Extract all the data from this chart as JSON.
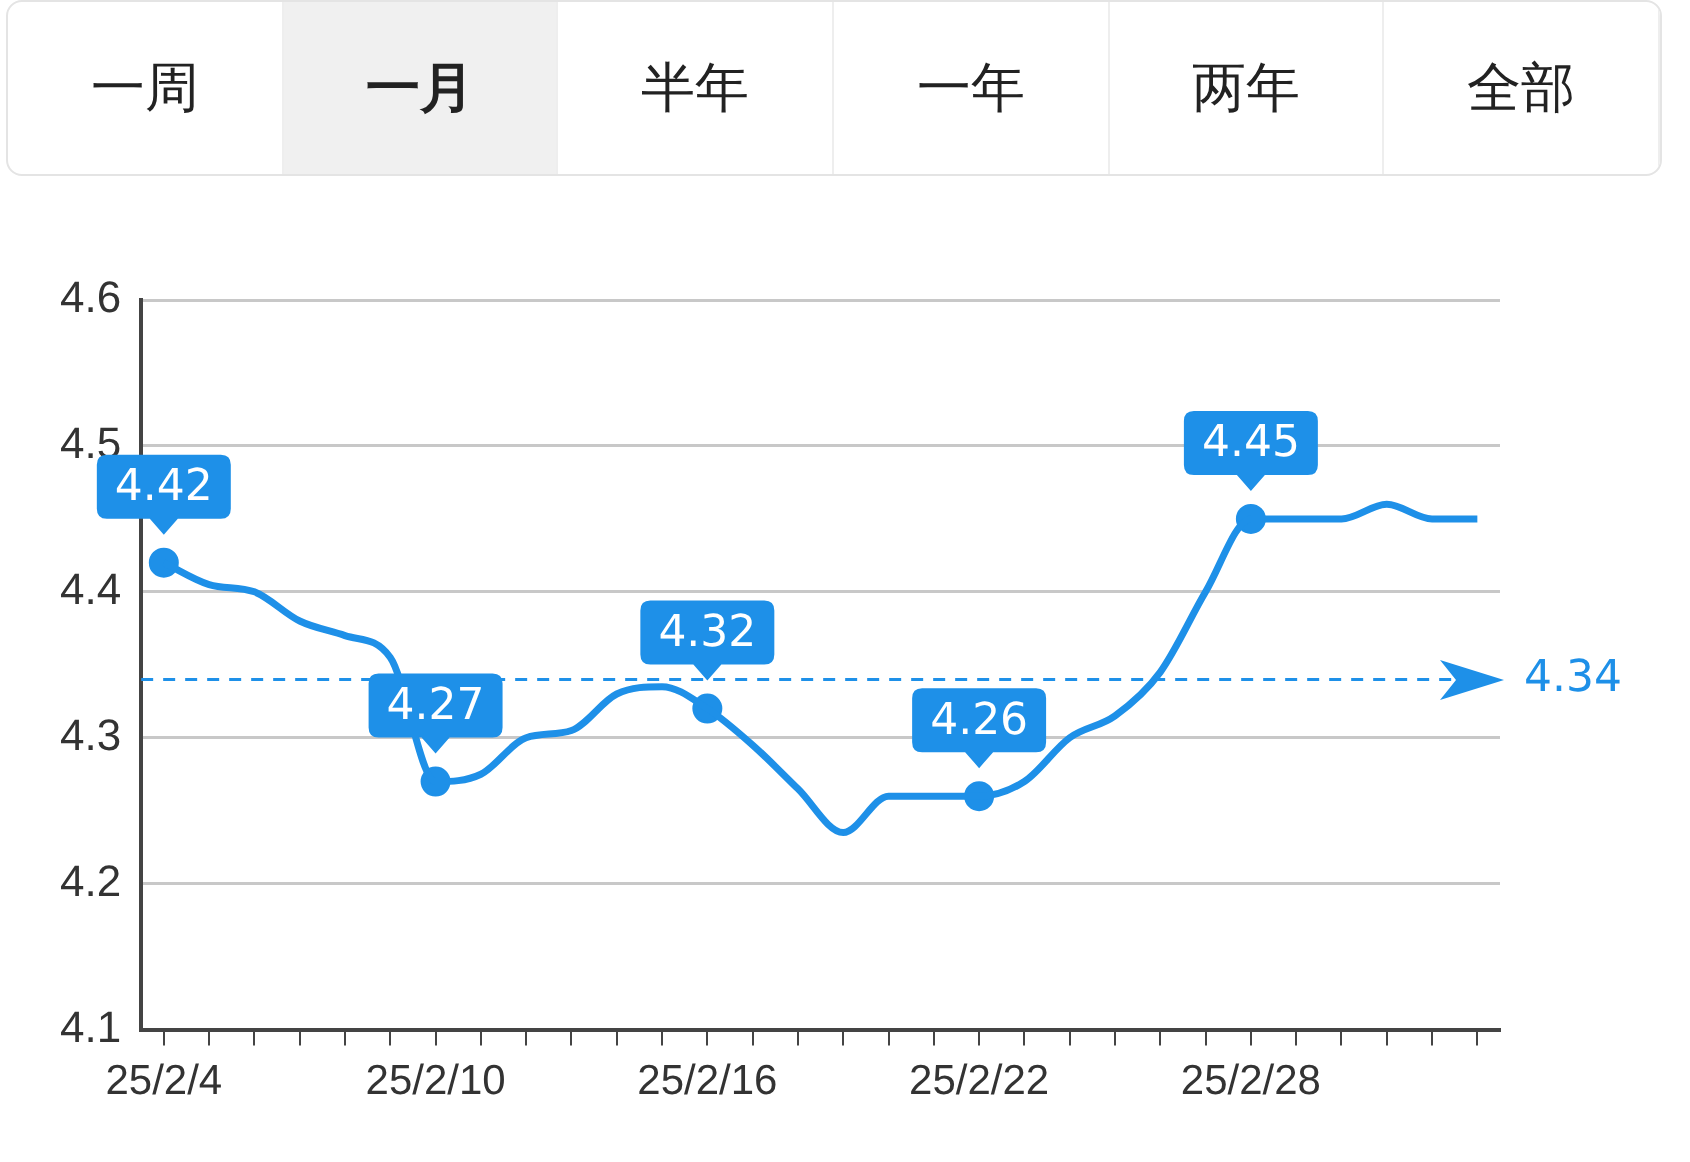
{
  "chart_data": {
    "type": "line",
    "annotations": [
      "一周",
      "一月",
      "半年",
      "一年",
      "两年",
      "全部"
    ],
    "categories": [
      "25/2/4",
      null,
      null,
      null,
      null,
      null,
      "25/2/10",
      null,
      null,
      null,
      null,
      null,
      "25/2/16",
      null,
      null,
      null,
      null,
      null,
      "25/2/22",
      null,
      null,
      null,
      null,
      null,
      "25/2/28",
      null,
      null,
      null,
      null,
      null
    ],
    "series": [
      {
        "color": "#1e90e8",
        "marker": "none",
        "values": [
          4.42,
          4.405,
          4.4,
          4.38,
          4.37,
          4.355,
          4.27,
          4.275,
          4.3,
          4.305,
          4.33,
          4.335,
          4.32,
          4.295,
          4.265,
          4.235,
          4.26,
          4.26,
          4.26,
          4.27,
          4.3,
          4.315,
          4.345,
          4.4,
          4.45,
          4.45,
          4.45,
          4.46,
          4.45,
          4.45
        ]
      },
      {
        "type": "scatter",
        "color": "#1e90e8",
        "x": [
          "25/2/4",
          "25/2/10",
          "25/2/16",
          "25/2/22",
          "25/2/28"
        ],
        "values": [
          4.42,
          4.27,
          4.32,
          4.26,
          4.45
        ],
        "data_labels": true
      }
    ],
    "ylim": [
      4.1,
      4.6
    ],
    "yticks": [
      4.1,
      4.2,
      4.3,
      4.4,
      4.5,
      4.6
    ],
    "grid": "y",
    "legend": false,
    "marker": "circle",
    "line_style": "solid",
    "ref_lines": [
      {
        "axis": "y",
        "value": 4.34,
        "label": "4.34",
        "color": "#1e90e8",
        "line_style": "dashed"
      }
    ]
  }
}
